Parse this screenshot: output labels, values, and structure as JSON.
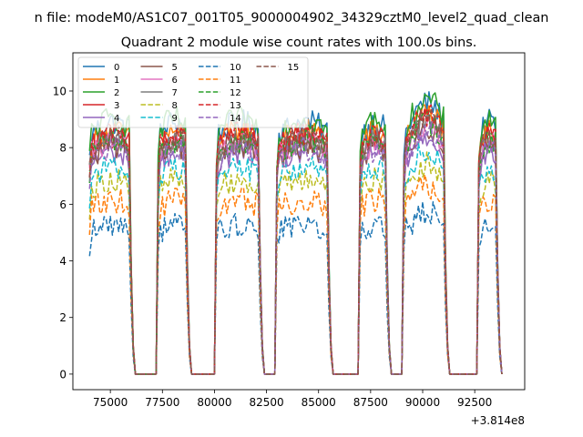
{
  "chart_data": {
    "type": "line",
    "suptitle": "n file: modeM0/AS1C07_001T05_9000004902_34329cztM0_level2_quad_clean",
    "title": "Quadrant 2 module wise count rates with 100.0s bins.",
    "xlabel": "",
    "ylabel": "",
    "x_offset_label": "+3.814e8",
    "xlim": [
      73200,
      94900
    ],
    "ylim": [
      -0.55,
      11.35
    ],
    "xticks": [
      75000,
      77500,
      80000,
      82500,
      85000,
      87500,
      90000,
      92500
    ],
    "xtick_labels": [
      "75000",
      "77500",
      "80000",
      "82500",
      "85000",
      "87500",
      "90000",
      "92500"
    ],
    "yticks": [
      0,
      2,
      4,
      6,
      8,
      10
    ],
    "ytick_labels": [
      "0",
      "2",
      "4",
      "6",
      "8",
      "10"
    ],
    "legend_position": "upper-left",
    "grid": false,
    "segments": [
      {
        "start": 74000,
        "end": 76200,
        "pre_end": 75900
      },
      {
        "start": 77300,
        "end": 78900,
        "pre_end": 78600
      },
      {
        "start": 80100,
        "end": 82400,
        "pre_end": 82100
      },
      {
        "start": 83000,
        "end": 85700,
        "pre_end": 85400
      },
      {
        "start": 87000,
        "end": 88500,
        "pre_end": 88200
      },
      {
        "start": 89100,
        "end": 91300,
        "pre_end": 91000
      },
      {
        "start": 92700,
        "end": 93800,
        "pre_end": 93500
      }
    ],
    "series": [
      {
        "name": "0",
        "color": "#1f77b4",
        "dash": false,
        "level": 8.4
      },
      {
        "name": "1",
        "color": "#ff7f0e",
        "dash": false,
        "level": 8.1
      },
      {
        "name": "2",
        "color": "#2ca02c",
        "dash": false,
        "level": 8.5
      },
      {
        "name": "3",
        "color": "#d62728",
        "dash": false,
        "level": 7.9
      },
      {
        "name": "4",
        "color": "#9467bd",
        "dash": false,
        "level": 7.4
      },
      {
        "name": "5",
        "color": "#8c564b",
        "dash": false,
        "level": 7.6
      },
      {
        "name": "6",
        "color": "#e377c2",
        "dash": false,
        "level": 7.7
      },
      {
        "name": "7",
        "color": "#7f7f7f",
        "dash": false,
        "level": 7.8
      },
      {
        "name": "8",
        "color": "#bcbd22",
        "dash": true,
        "level": 6.5
      },
      {
        "name": "9",
        "color": "#17becf",
        "dash": true,
        "level": 6.9
      },
      {
        "name": "10",
        "color": "#1f77b4",
        "dash": true,
        "level": 5.0
      },
      {
        "name": "11",
        "color": "#ff7f0e",
        "dash": true,
        "level": 5.8
      },
      {
        "name": "12",
        "color": "#2ca02c",
        "dash": true,
        "level": 7.8
      },
      {
        "name": "13",
        "color": "#d62728",
        "dash": true,
        "level": 8.0
      },
      {
        "name": "14",
        "color": "#9467bd",
        "dash": true,
        "level": 7.5
      },
      {
        "name": "15",
        "color": "#8c564b",
        "dash": true,
        "level": 7.9
      }
    ]
  }
}
